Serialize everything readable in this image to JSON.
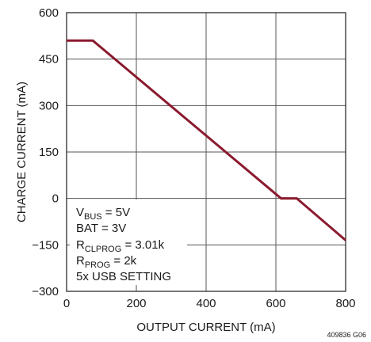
{
  "chart_data": {
    "type": "line",
    "xlabel": "OUTPUT CURRENT (mA)",
    "ylabel": "CHARGE CURRENT (mA)",
    "xlim": [
      0,
      800
    ],
    "ylim": [
      -300,
      600
    ],
    "x_ticks": [
      "0",
      "200",
      "400",
      "600",
      "800"
    ],
    "y_ticks": [
      "600",
      "450",
      "300",
      "150",
      "0",
      "−150",
      "−300"
    ],
    "x_tick_values": [
      0,
      200,
      400,
      600,
      800
    ],
    "y_tick_values": [
      600,
      450,
      300,
      150,
      0,
      -150,
      -300
    ],
    "grid": true,
    "series": [
      {
        "color": "#8b1a2e",
        "x": [
          0,
          75,
          615,
          660,
          800
        ],
        "y": [
          510,
          510,
          0,
          0,
          -135
        ]
      }
    ],
    "annotations": {
      "vbus": {
        "main": "V",
        "sub": "BUS",
        "rest": " = 5V"
      },
      "bat": "BAT = 3V",
      "rclprog": {
        "main": "R",
        "sub": "CLPROG",
        "rest": " = 3.01k"
      },
      "rprog": {
        "main": "R",
        "sub": "PROG",
        "rest": " = 2k"
      },
      "setting": "5x USB SETTING"
    },
    "figure_id": "409836 G06"
  }
}
